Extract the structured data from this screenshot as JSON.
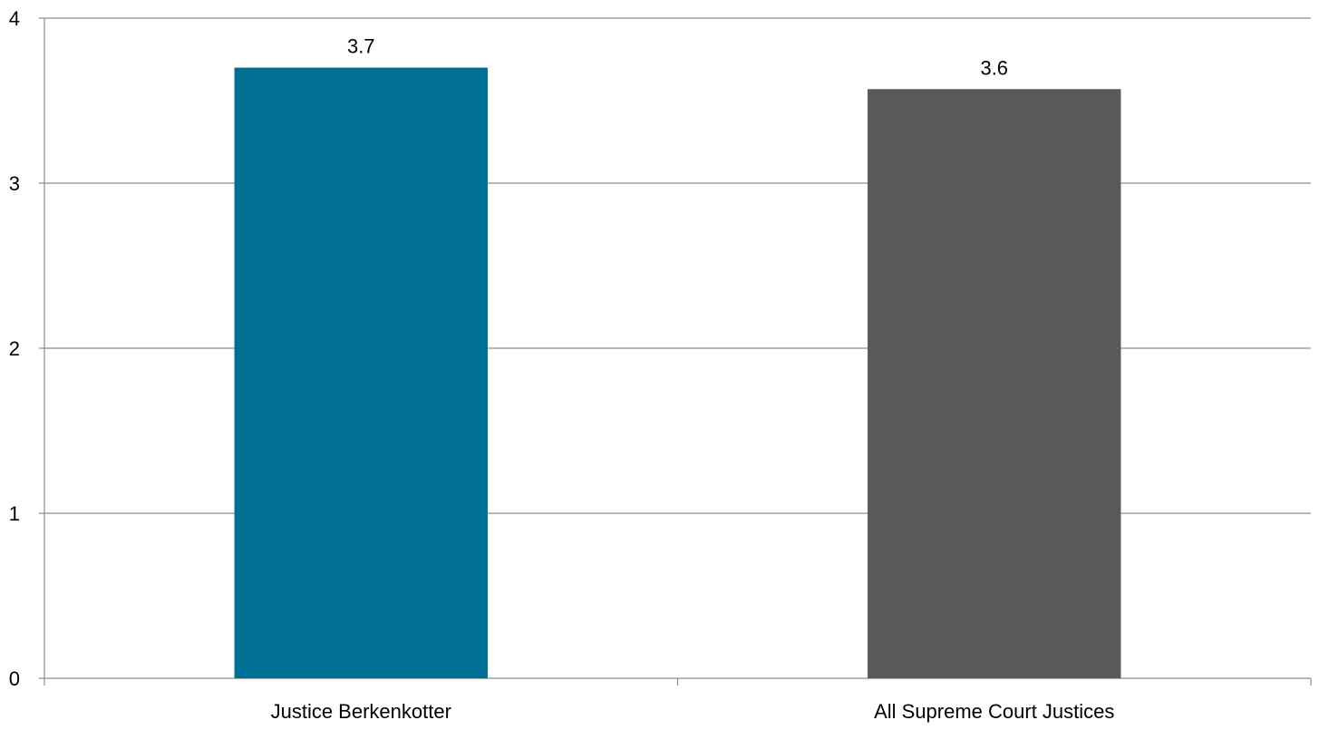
{
  "chart_data": {
    "type": "bar",
    "categories": [
      "Justice Berkenkotter",
      "All Supreme Court Justices"
    ],
    "values": [
      3.7,
      3.57
    ],
    "data_labels": [
      "3.7",
      "3.6"
    ],
    "bar_colors": [
      "#006F94",
      "#595959"
    ],
    "title": "",
    "xlabel": "",
    "ylabel": "",
    "ylim": [
      0,
      4
    ],
    "yticks": [
      0,
      1,
      2,
      3,
      4
    ],
    "ytick_labels": [
      "0",
      "1",
      "2",
      "3",
      "4"
    ],
    "grid": true,
    "gridline_color": "#8c8c8c",
    "legend": "none"
  }
}
